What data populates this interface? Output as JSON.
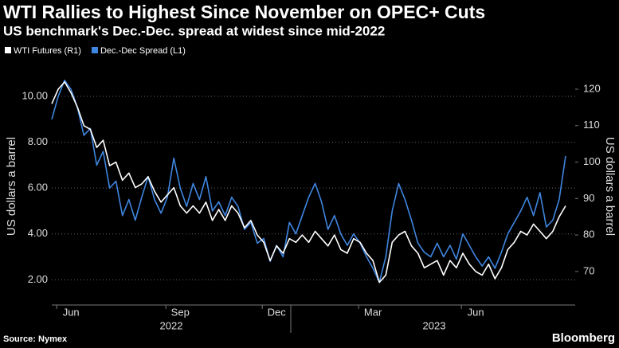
{
  "chart_data": {
    "type": "line",
    "title": "WTI Rallies to Highest Since November on OPEC+ Cuts",
    "subtitle": "US benchmark's Dec.-Dec. spread at widest since mid-2022",
    "source": "Source: Nymex",
    "brand": "Bloomberg",
    "y_label": "US dollars a barrel",
    "y2_label": "US dollars a barrel",
    "years": [
      "2022",
      "2023"
    ],
    "categories": [
      null,
      null,
      null,
      "Jun",
      null,
      null,
      null,
      null,
      null,
      null,
      null,
      null,
      null,
      null,
      null,
      null,
      null,
      null,
      null,
      null,
      "Sep",
      null,
      null,
      null,
      null,
      null,
      null,
      null,
      null,
      null,
      null,
      null,
      null,
      null,
      null,
      "Dec",
      null,
      null,
      null,
      null,
      null,
      null,
      null,
      null,
      null,
      null,
      null,
      null,
      null,
      null,
      "Mar",
      null,
      null,
      null,
      null,
      null,
      null,
      null,
      null,
      null,
      null,
      null,
      null,
      null,
      null,
      null,
      "Jun",
      null,
      null,
      null,
      null,
      null,
      null,
      null,
      null,
      null,
      null,
      null,
      null,
      null,
      null
    ],
    "series": [
      {
        "name": "WTI Futures (R1)",
        "color": "#ffffff",
        "axis": "y2",
        "values": [
          116,
          120,
          122,
          119,
          115,
          110,
          109,
          104,
          106,
          99,
          100,
          95,
          97,
          93,
          94,
          96,
          92,
          89,
          91,
          93,
          88,
          86,
          88,
          86,
          89,
          84,
          87,
          84,
          88,
          86,
          82,
          84,
          80,
          78,
          73,
          77,
          75,
          79,
          78,
          80,
          78,
          81,
          79,
          77,
          80,
          76,
          75,
          79,
          78,
          75,
          73,
          67,
          69,
          78,
          80,
          81,
          77,
          75,
          71,
          72,
          73,
          69,
          73,
          71,
          75,
          72,
          70,
          69,
          72,
          68,
          71,
          76,
          78,
          81,
          80,
          83,
          81,
          79,
          81,
          85,
          88
        ]
      },
      {
        "name": "Dec.-Dec Spread (L1)",
        "color": "#3f86e0",
        "axis": "y",
        "values": [
          9.0,
          10.0,
          10.7,
          10.3,
          9.5,
          8.3,
          8.6,
          7.0,
          7.6,
          6.0,
          6.3,
          4.8,
          5.5,
          4.6,
          5.6,
          6.5,
          5.5,
          4.9,
          5.6,
          7.3,
          6.0,
          5.2,
          6.2,
          5.5,
          6.5,
          5.0,
          5.4,
          4.8,
          5.6,
          5.2,
          4.2,
          4.5,
          3.6,
          3.8,
          2.8,
          3.5,
          3.0,
          4.5,
          4.0,
          4.8,
          5.6,
          6.2,
          5.4,
          4.2,
          4.8,
          4.0,
          3.5,
          4.0,
          3.6,
          3.0,
          2.5,
          1.9,
          3.0,
          5.0,
          6.2,
          5.5,
          4.6,
          3.6,
          3.2,
          3.0,
          3.6,
          3.0,
          3.5,
          2.9,
          4.0,
          3.5,
          3.0,
          2.6,
          3.0,
          2.5,
          3.2,
          4.0,
          4.5,
          5.0,
          5.6,
          4.8,
          5.8,
          4.3,
          4.6,
          5.5,
          7.4
        ]
      }
    ],
    "ylim": [
      0.9,
      11.25
    ],
    "yticks": [
      {
        "value": 2,
        "label": "2.00"
      },
      {
        "value": 4,
        "label": "4.00"
      },
      {
        "value": 6,
        "label": "6.00"
      },
      {
        "value": 8,
        "label": "8.00"
      },
      {
        "value": 10,
        "label": "10.00"
      }
    ],
    "y2lim": [
      60.8,
      125.9
    ],
    "y2ticks": [
      70,
      80,
      90,
      100,
      110,
      120
    ],
    "grid": true
  }
}
